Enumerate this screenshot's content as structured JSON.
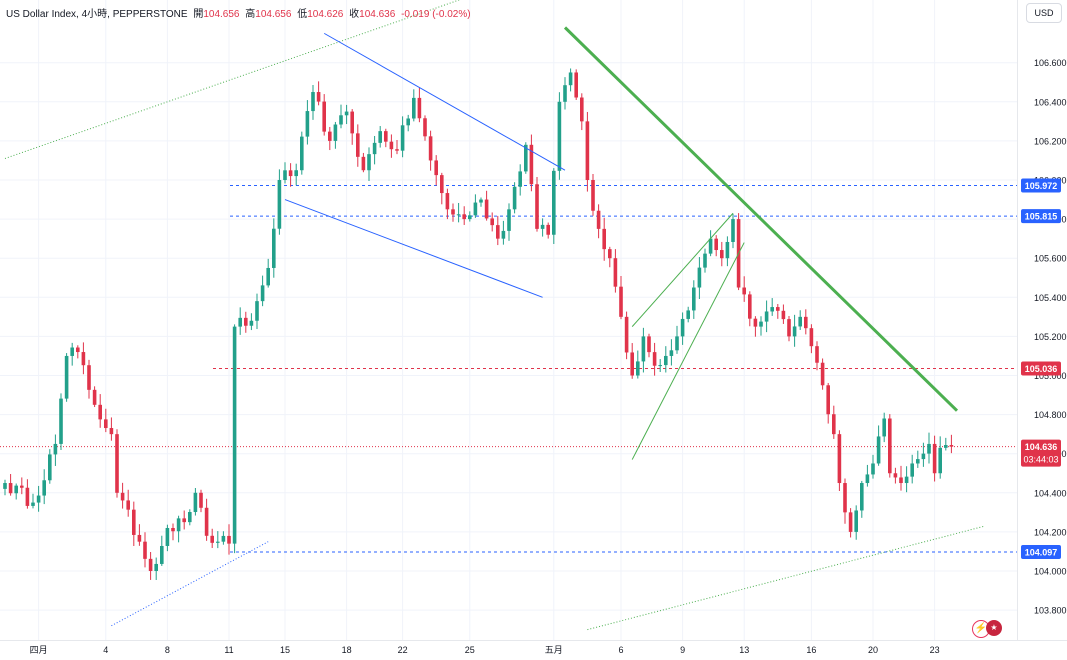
{
  "header": {
    "symbol": "US Dollar Index, 4小時, PEPPERSTONE",
    "open_label": "開",
    "open": "104.656",
    "high_label": "高",
    "high": "104.656",
    "low_label": "低",
    "low": "104.626",
    "close_label": "收",
    "close": "104.636",
    "change": "-0.019 (-0.02%)"
  },
  "currency_button": "USD",
  "colors": {
    "up": "#22a08a",
    "down": "#e0334a",
    "blue": "#2962ff",
    "green_trend": "#4caf50",
    "grid": "#f0f3fa",
    "text": "#131722"
  },
  "icons": [
    "flash-icon",
    "us-flag-icon"
  ],
  "chart_data": {
    "type": "candlestick",
    "symbol": "US Dollar Index",
    "timeframe": "4小時",
    "ylim": [
      103.7,
      106.9
    ],
    "y_ticks": [
      "103.800",
      "104.000",
      "104.200",
      "104.400",
      "104.600",
      "104.800",
      "105.000",
      "105.200",
      "105.400",
      "105.600",
      "105.800",
      "106.000",
      "106.200",
      "106.400",
      "106.600"
    ],
    "x_ticks": [
      "四月",
      "4",
      "8",
      "11",
      "15",
      "18",
      "22",
      "25",
      "五月",
      "6",
      "9",
      "13",
      "16",
      "20",
      "23"
    ],
    "x_tick_index": [
      6,
      18,
      29,
      40,
      50,
      61,
      71,
      83,
      98,
      110,
      121,
      132,
      144,
      155,
      166
    ],
    "anchors": [
      [
        0,
        104.45
      ],
      [
        5,
        104.35
      ],
      [
        9,
        104.65
      ],
      [
        11,
        105.1
      ],
      [
        13,
        105.12
      ],
      [
        16,
        104.85
      ],
      [
        19,
        104.7
      ],
      [
        20,
        104.4
      ],
      [
        24,
        104.15
      ],
      [
        26,
        104.0
      ],
      [
        29,
        104.22
      ],
      [
        32,
        104.25
      ],
      [
        34,
        104.4
      ],
      [
        36,
        104.18
      ],
      [
        38,
        104.15
      ],
      [
        40,
        104.14
      ],
      [
        41,
        105.25
      ],
      [
        44,
        105.28
      ],
      [
        47,
        105.55
      ],
      [
        49,
        106.0
      ],
      [
        52,
        106.05
      ],
      [
        55,
        106.45
      ],
      [
        58,
        106.2
      ],
      [
        61,
        106.35
      ],
      [
        64,
        106.05
      ],
      [
        67,
        106.25
      ],
      [
        70,
        106.15
      ],
      [
        73,
        106.42
      ],
      [
        76,
        106.1
      ],
      [
        79,
        105.85
      ],
      [
        82,
        105.8
      ],
      [
        85,
        105.9
      ],
      [
        88,
        105.7
      ],
      [
        90,
        105.85
      ],
      [
        93,
        106.18
      ],
      [
        95,
        105.75
      ],
      [
        97,
        105.72
      ],
      [
        99,
        106.4
      ],
      [
        101,
        106.55
      ],
      [
        103,
        106.3
      ],
      [
        104,
        106.0
      ],
      [
        106,
        105.75
      ],
      [
        108,
        105.6
      ],
      [
        110,
        105.3
      ],
      [
        112,
        105.0
      ],
      [
        114,
        105.2
      ],
      [
        116,
        105.05
      ],
      [
        118,
        105.1
      ],
      [
        120,
        105.2
      ],
      [
        123,
        105.45
      ],
      [
        126,
        105.7
      ],
      [
        128,
        105.6
      ],
      [
        130,
        105.8
      ],
      [
        131,
        105.45
      ],
      [
        134,
        105.25
      ],
      [
        137,
        105.35
      ],
      [
        140,
        105.2
      ],
      [
        142,
        105.3
      ],
      [
        144,
        105.15
      ],
      [
        146,
        104.95
      ],
      [
        148,
        104.7
      ],
      [
        149,
        104.45
      ],
      [
        150,
        104.3
      ],
      [
        151,
        104.2
      ],
      [
        153,
        104.45
      ],
      [
        155,
        104.55
      ],
      [
        157,
        104.78
      ],
      [
        158,
        104.5
      ],
      [
        160,
        104.45
      ],
      [
        162,
        104.55
      ],
      [
        165,
        104.65
      ],
      [
        166,
        104.5
      ],
      [
        167,
        104.63
      ],
      [
        169,
        104.636
      ]
    ],
    "horizontal_levels": [
      {
        "label": "105.972",
        "value": 105.972,
        "color": "#2962ff"
      },
      {
        "label": "105.815",
        "value": 105.815,
        "color": "#2962ff"
      },
      {
        "label": "105.036",
        "value": 105.036,
        "color": "#e0334a"
      },
      {
        "label": "104.097",
        "value": 104.097,
        "color": "#2962ff"
      }
    ],
    "last_price": {
      "label": "104.636",
      "value": 104.636,
      "countdown": "03:44:03",
      "color": "#e0334a"
    },
    "trendlines": [
      {
        "name": "channel-upper",
        "color": "#2962ff",
        "p1": [
          57,
          106.75
        ],
        "p2": [
          100,
          106.05
        ]
      },
      {
        "name": "channel-lower",
        "color": "#2962ff",
        "p1": [
          50,
          105.9
        ],
        "p2": [
          96,
          105.4
        ]
      },
      {
        "name": "green-trend",
        "color": "#4caf50",
        "p1": [
          100,
          106.78
        ],
        "p2": [
          170,
          104.82
        ]
      },
      {
        "name": "wedge-upper",
        "color": "#4caf50",
        "p1": [
          112,
          105.25
        ],
        "p2": [
          130,
          105.83
        ]
      },
      {
        "name": "wedge-lower",
        "color": "#4caf50",
        "p1": [
          112,
          104.57
        ],
        "p2": [
          132,
          105.68
        ]
      },
      {
        "name": "dotted-upper",
        "color": "#4caf50",
        "p1": [
          0,
          106.11
        ],
        "p2": [
          94,
          107.05
        ]
      },
      {
        "name": "dotted-lower",
        "color": "#4caf50",
        "p1": [
          104,
          103.7
        ],
        "p2": [
          175,
          104.23
        ]
      },
      {
        "name": "dotted-blue",
        "color": "#2962ff",
        "p1": [
          19,
          103.72
        ],
        "p2": [
          47,
          104.15
        ]
      }
    ]
  }
}
